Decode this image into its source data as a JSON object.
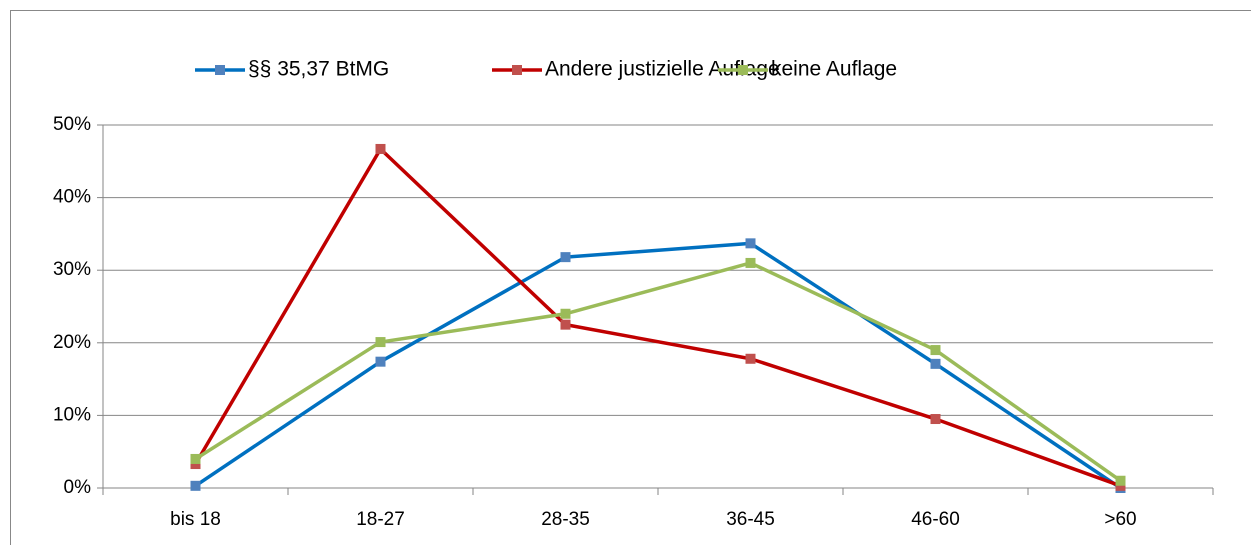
{
  "chart_data": {
    "type": "line",
    "categories": [
      "bis 18",
      "18-27",
      "28-35",
      "36-45",
      "46-60",
      ">60"
    ],
    "series": [
      {
        "name": "§§ 35,37 BtMG",
        "color": "#0070c0",
        "marker_color": "#4f81bd",
        "values": [
          0.3,
          17.4,
          31.8,
          33.7,
          17.1,
          0
        ]
      },
      {
        "name": "Andere justizielle Auflage",
        "color": "#c00000",
        "marker_color": "#c0504d",
        "values": [
          3.3,
          46.7,
          22.5,
          17.8,
          9.5,
          0.3
        ]
      },
      {
        "name": "keine Auflage",
        "color": "#9bbb59",
        "marker_color": "#9bbb59",
        "values": [
          4.0,
          20.1,
          24.0,
          31.0,
          19.0,
          1.0
        ]
      }
    ],
    "ylim": [
      0,
      50
    ],
    "yticks": [
      {
        "value": 0,
        "label": "0%"
      },
      {
        "value": 10,
        "label": "10%"
      },
      {
        "value": 20,
        "label": "20%"
      },
      {
        "value": 30,
        "label": "30%"
      },
      {
        "value": 40,
        "label": "40%"
      },
      {
        "value": 50,
        "label": "50%"
      }
    ],
    "grid": true,
    "legend": "top"
  }
}
